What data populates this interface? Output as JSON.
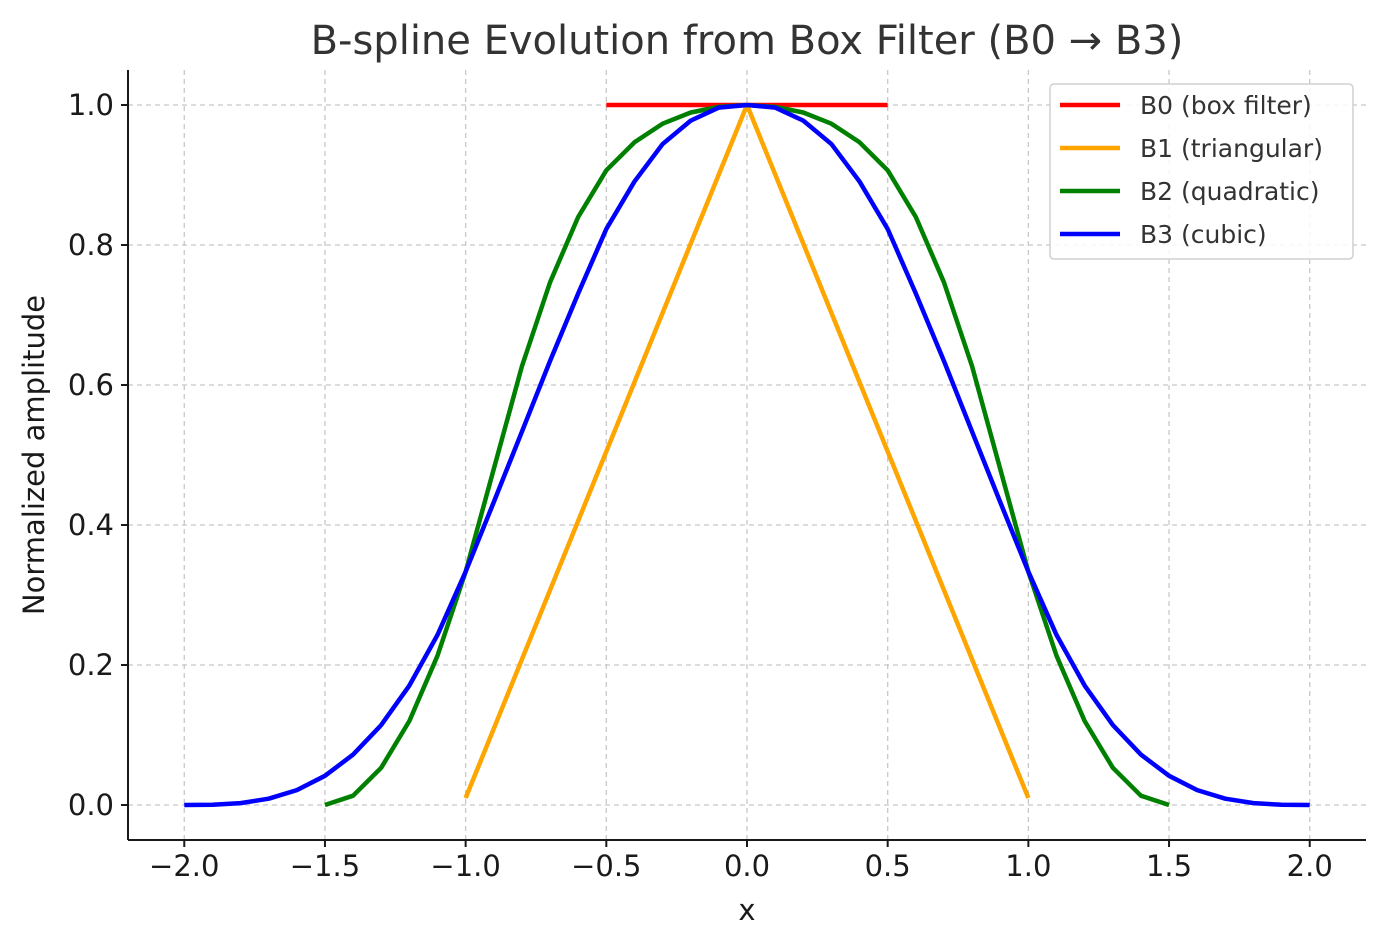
{
  "chart_data": {
    "type": "line",
    "title": "B-spline Evolution from Box Filter (B0 → B3)",
    "xlabel": "x",
    "ylabel": "Normalized amplitude",
    "xlim": [
      -2.2,
      2.2
    ],
    "ylim": [
      -0.05,
      1.05
    ],
    "xticks": [
      -2.0,
      -1.5,
      -1.0,
      -0.5,
      0.0,
      0.5,
      1.0,
      1.5,
      2.0
    ],
    "xtick_labels": [
      "−2.0",
      "−1.5",
      "−1.0",
      "−0.5",
      "0.0",
      "0.5",
      "1.0",
      "1.5",
      "2.0"
    ],
    "yticks": [
      0.0,
      0.2,
      0.4,
      0.6,
      0.8,
      1.0
    ],
    "ytick_labels": [
      "0.0",
      "0.2",
      "0.4",
      "0.6",
      "0.8",
      "1.0"
    ],
    "grid": true,
    "legend_position": "top-right",
    "series": [
      {
        "name": "B0 (box filter)",
        "color": "#ff0000",
        "x": [
          -0.5,
          0.5
        ],
        "y": [
          1.0,
          1.0
        ]
      },
      {
        "name": "B1 (triangular)",
        "color": "#ffa500",
        "x": [
          -1.0,
          0.0,
          1.0
        ],
        "y": [
          0.01,
          1.0,
          0.01
        ]
      },
      {
        "name": "B2 (quadratic)",
        "color": "#008000",
        "x": [
          -1.5,
          -1.4,
          -1.3,
          -1.2,
          -1.1,
          -1.0,
          -0.9,
          -0.8,
          -0.7,
          -0.6,
          -0.5,
          -0.4,
          -0.3,
          -0.2,
          -0.1,
          0.0,
          0.1,
          0.2,
          0.3,
          0.4,
          0.5,
          0.6,
          0.7,
          0.8,
          0.9,
          1.0,
          1.1,
          1.2,
          1.3,
          1.4,
          1.5
        ],
        "y": [
          0.0,
          0.0133,
          0.0533,
          0.12,
          0.2133,
          0.3333,
          0.48,
          0.6267,
          0.7467,
          0.84,
          0.9067,
          0.9467,
          0.9733,
          0.9893,
          0.9973,
          1.0,
          0.9973,
          0.9893,
          0.9733,
          0.9467,
          0.9067,
          0.84,
          0.7467,
          0.6267,
          0.48,
          0.3333,
          0.2133,
          0.12,
          0.0533,
          0.0133,
          0.0
        ]
      },
      {
        "name": "B3 (cubic)",
        "color": "#0000ff",
        "x": [
          -2.0,
          -1.9,
          -1.8,
          -1.7,
          -1.6,
          -1.5,
          -1.4,
          -1.3,
          -1.2,
          -1.1,
          -1.0,
          -0.9,
          -0.8,
          -0.7,
          -0.6,
          -0.5,
          -0.4,
          -0.3,
          -0.2,
          -0.1,
          0.0,
          0.1,
          0.2,
          0.3,
          0.4,
          0.5,
          0.6,
          0.7,
          0.8,
          0.9,
          1.0,
          1.1,
          1.2,
          1.3,
          1.4,
          1.5,
          1.6,
          1.7,
          1.8,
          1.9,
          2.0
        ],
        "y": [
          0.0,
          0.0003,
          0.0027,
          0.009,
          0.0213,
          0.0417,
          0.072,
          0.1143,
          0.1707,
          0.243,
          0.3333,
          0.4327,
          0.5333,
          0.6343,
          0.7307,
          0.8229,
          0.8906,
          0.9442,
          0.9777,
          0.9963,
          1.0,
          0.9963,
          0.9777,
          0.9442,
          0.8906,
          0.8229,
          0.7307,
          0.6343,
          0.5333,
          0.4327,
          0.3333,
          0.243,
          0.1707,
          0.1143,
          0.072,
          0.0417,
          0.0213,
          0.009,
          0.0027,
          0.0003,
          0.0
        ]
      }
    ]
  }
}
